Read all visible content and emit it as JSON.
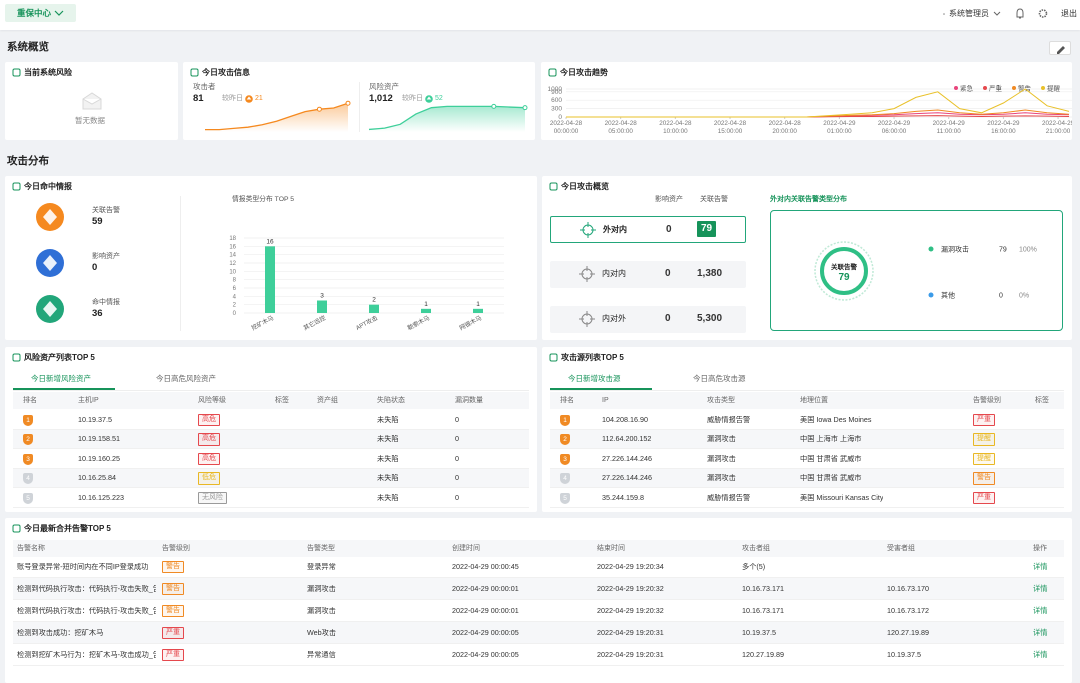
{
  "topbar": {
    "menu": "重保中心",
    "user": "系统管理员",
    "logout": "退出"
  },
  "sections": [
    "系统概览",
    "攻击分布"
  ],
  "risk": {
    "title": "当前系统风险",
    "empty": "暂无数据"
  },
  "attack_info": {
    "title": "今日攻击信息",
    "attacker": {
      "label": "攻击者",
      "value": "81",
      "compare": "较昨日",
      "delta": "21"
    },
    "asset": {
      "label": "风险资产",
      "value": "1,012",
      "compare": "较昨日",
      "delta": "52"
    }
  },
  "intel": {
    "title": "今日命中情报",
    "items": [
      {
        "label": "关联告警",
        "value": "59",
        "color": "#f5891f"
      },
      {
        "label": "影响资产",
        "value": "0",
        "color": "#2f6fd6"
      },
      {
        "label": "命中情报",
        "value": "36",
        "color": "#22a67a"
      }
    ]
  },
  "overview": {
    "title": "今日攻击概览",
    "headers": [
      "影响资产",
      "关联告警"
    ],
    "rows": [
      [
        "外对内",
        "0",
        "79"
      ],
      [
        "内对内",
        "0",
        "1,380"
      ],
      [
        "内对外",
        "0",
        "5,300"
      ]
    ],
    "dist_title": "外对内关联告警类型分布"
  },
  "assets": {
    "title": "风险资产列表TOP 5",
    "tabs": [
      "今日新增风险资产",
      "今日高危风险资产"
    ],
    "headers": [
      "排名",
      "主机IP",
      "风险等级",
      "标签",
      "资产组",
      "失陷状态",
      "漏洞数量"
    ],
    "rows": [
      [
        "1",
        "10.19.37.5",
        {
          "badge": "高危",
          "color": "#e5484d"
        },
        null,
        null,
        "未失陷",
        "0"
      ],
      [
        "2",
        "10.19.158.51",
        {
          "badge": "高危",
          "color": "#e5484d"
        },
        null,
        null,
        "未失陷",
        "0"
      ],
      [
        "3",
        "10.19.160.25",
        {
          "badge": "高危",
          "color": "#e5484d"
        },
        null,
        null,
        "未失陷",
        "0"
      ],
      [
        "4",
        "10.16.25.84",
        {
          "badge": "低危",
          "color": "#e9b824"
        },
        null,
        null,
        "未失陷",
        "0"
      ],
      [
        "5",
        "10.16.125.223",
        {
          "badge": "无风险",
          "color": "#9a9a9a"
        },
        null,
        null,
        "未失陷",
        "0"
      ]
    ]
  },
  "sources": {
    "title": "攻击源列表TOP 5",
    "tabs": [
      "今日新增攻击源",
      "今日高危攻击源"
    ],
    "headers": [
      "排名",
      "IP",
      "攻击类型",
      "地理位置",
      "告警级别",
      "标签"
    ],
    "rows": [
      [
        "1",
        "104.208.16.90",
        "威胁情报告警",
        "美国 Iowa Des Moines",
        {
          "badge": "严重",
          "color": "#e5484d"
        },
        null
      ],
      [
        "2",
        "112.64.200.152",
        "漏洞攻击",
        "中国 上海市 上海市",
        {
          "badge": "提醒",
          "color": "#e9b824"
        },
        null
      ],
      [
        "3",
        "27.226.144.246",
        "漏洞攻击",
        "中国 甘肃省 武威市",
        {
          "badge": "提醒",
          "color": "#e9b824"
        },
        null
      ],
      [
        "4",
        "27.226.144.246",
        "漏洞攻击",
        "中国 甘肃省 武威市",
        {
          "badge": "警告",
          "color": "#f08a24"
        },
        null
      ],
      [
        "5",
        "35.244.159.8",
        "威胁情报告警",
        "美国 Missouri Kansas City",
        {
          "badge": "严重",
          "color": "#e5484d"
        },
        null
      ]
    ]
  },
  "alerts": {
    "title": "今日最新合并告警TOP 5",
    "headers": [
      "告警名称",
      "告警级别",
      "告警类型",
      "创建时间",
      "结束时间",
      "攻击者组",
      "受害者组",
      "操作"
    ],
    "rows": [
      [
        "账号登录异常-短时间内在不同IP登录成功",
        {
          "badge": "警告",
          "color": "#f08a24"
        },
        "登录异常",
        "2022-04-29 00:00:45",
        "2022-04-29 19:20:34",
        "多个(5)",
        null,
        "详情"
      ],
      [
        "检测到代码执行攻击：代码执行-攻击失败_告警",
        {
          "badge": "警告",
          "color": "#f08a24"
        },
        "漏洞攻击",
        "2022-04-29 00:00:01",
        "2022-04-29 19:20:32",
        "10.16.73.171",
        "10.16.73.170",
        "详情"
      ],
      [
        "检测到代码执行攻击：代码执行-攻击失败_告警",
        {
          "badge": "警告",
          "color": "#f08a24"
        },
        "漏洞攻击",
        "2022-04-29 00:00:01",
        "2022-04-29 19:20:32",
        "10.16.73.171",
        "10.16.73.172",
        "详情"
      ],
      [
        "检测到攻击成功：挖矿木马",
        {
          "badge": "严重",
          "color": "#e5484d"
        },
        "Web攻击",
        "2022-04-29 00:00:05",
        "2022-04-29 19:20:31",
        "10.19.37.5",
        "120.27.19.89",
        "详情"
      ],
      [
        "检测到挖矿木马行为：挖矿木马-攻击成功_告警",
        {
          "badge": "严重",
          "color": "#e5484d"
        },
        "异常通信",
        "2022-04-29 00:00:05",
        "2022-04-29 19:20:31",
        "120.27.19.89",
        "10.19.37.5",
        "详情"
      ]
    ]
  },
  "chart_data": [
    {
      "type": "line",
      "title": "今日攻击趋势",
      "x": [
        0,
        2,
        4,
        6,
        8,
        10,
        12,
        14,
        16,
        18,
        20,
        22,
        24,
        26,
        28,
        30,
        32,
        34,
        36,
        38,
        40,
        42,
        44,
        46
      ],
      "xlim": [
        0,
        46
      ],
      "xticks": [
        {
          "value": 0,
          "label": "2022-04-28 00:00:00"
        },
        {
          "value": 5,
          "label": "2022-04-28 05:00:00"
        },
        {
          "value": 10,
          "label": "2022-04-28 10:00:00"
        },
        {
          "value": 15,
          "label": "2022-04-28 15:00:00"
        },
        {
          "value": 20,
          "label": "2022-04-28 20:00:00"
        },
        {
          "value": 25,
          "label": "2022-04-29 01:00:00"
        },
        {
          "value": 30,
          "label": "2022-04-29 06:00:00"
        },
        {
          "value": 35,
          "label": "2022-04-29 11:00:00"
        },
        {
          "value": 40,
          "label": "2022-04-29 16:00:00"
        },
        {
          "value": 45,
          "label": "2022-04-29 21:00:00"
        }
      ],
      "ylim": [
        0,
        1000
      ],
      "yticks": [
        0,
        300,
        600,
        900,
        1000
      ],
      "grid": true,
      "legend": "top-right",
      "series": [
        {
          "name": "紧急",
          "color": "#e8457c",
          "values": [
            0,
            0,
            0,
            0,
            0,
            0,
            0,
            0,
            0,
            0,
            0,
            0,
            20,
            40,
            60,
            80,
            120,
            150,
            100,
            80,
            100,
            150,
            100,
            80
          ]
        },
        {
          "name": "严重",
          "color": "#e5484d",
          "values": [
            0,
            0,
            0,
            0,
            0,
            0,
            0,
            0,
            0,
            0,
            0,
            0,
            10,
            20,
            20,
            30,
            40,
            50,
            30,
            20,
            30,
            40,
            30,
            20
          ]
        },
        {
          "name": "警告",
          "color": "#f08a24",
          "values": [
            0,
            0,
            0,
            0,
            0,
            0,
            0,
            0,
            0,
            0,
            0,
            0,
            30,
            60,
            80,
            120,
            200,
            250,
            150,
            100,
            150,
            250,
            150,
            100
          ]
        },
        {
          "name": "提醒",
          "color": "#e9c12a",
          "values": [
            0,
            0,
            0,
            0,
            0,
            0,
            0,
            0,
            0,
            0,
            0,
            0,
            50,
            100,
            150,
            300,
            700,
            900,
            300,
            150,
            500,
            1000,
            400,
            200
          ]
        }
      ]
    },
    {
      "type": "bar",
      "title": "情报类型分布 TOP 5",
      "categories": [
        "挖矿木马",
        "其它远控",
        "APT攻击",
        "勒索木马",
        "网银木马"
      ],
      "values": [
        16,
        3,
        2,
        1,
        1
      ],
      "color": "#3ecf9a",
      "ylim": [
        0,
        18
      ],
      "yticks": [
        0,
        2,
        4,
        6,
        8,
        10,
        12,
        14,
        16,
        18
      ],
      "grid": true
    },
    {
      "type": "pie",
      "center_label": "关联告警",
      "total": 79,
      "categories": [
        "漏洞攻击",
        "其他"
      ],
      "values": [
        79,
        0
      ],
      "percent_labels": [
        "100%",
        "0%"
      ],
      "colors": [
        "#2fbf85",
        "#3b9be8"
      ]
    },
    {
      "type": "area",
      "values": [
        2,
        2,
        3,
        4,
        6,
        9,
        13,
        17,
        19,
        20,
        24
      ],
      "ylim": [
        0,
        25
      ],
      "color": "#f5891f"
    },
    {
      "type": "area",
      "values": [
        2,
        3,
        6,
        14,
        19,
        20,
        20,
        20,
        20,
        19.5,
        19
      ],
      "ylim": [
        0,
        25
      ],
      "color": "#3ecf9a"
    }
  ]
}
